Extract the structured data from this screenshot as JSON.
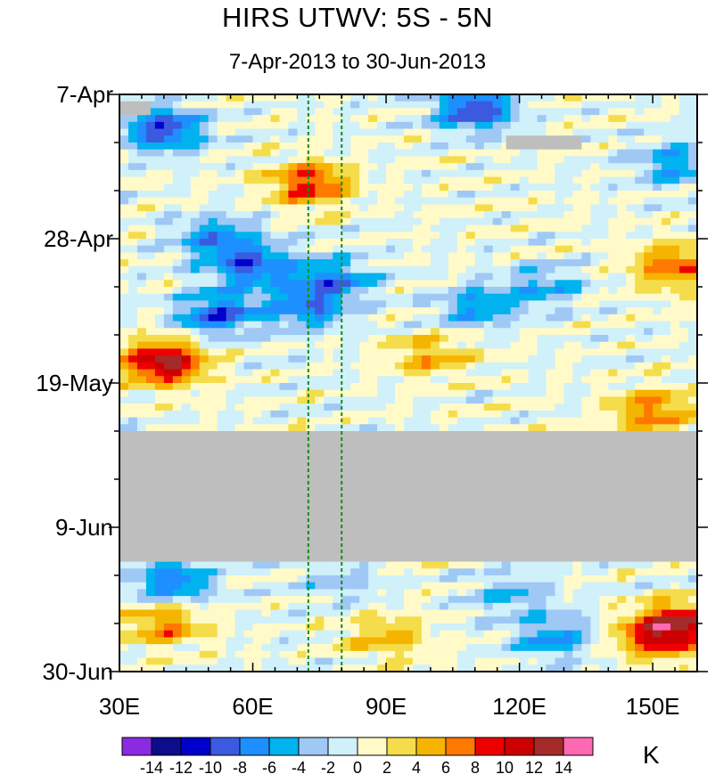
{
  "chart_data": {
    "type": "heatmap",
    "title": "HIRS UTWV: 5S - 5N",
    "subtitle": "7-Apr-2013 to 30-Jun-2013",
    "xlabel": "",
    "ylabel": "",
    "x_range": [
      30,
      160
    ],
    "y_range_days": [
      0,
      84
    ],
    "y_direction": "down",
    "x_ticks": [
      {
        "value": 30,
        "label": "30E"
      },
      {
        "value": 60,
        "label": "60E"
      },
      {
        "value": 90,
        "label": "90E"
      },
      {
        "value": 120,
        "label": "120E"
      },
      {
        "value": 150,
        "label": "150E"
      }
    ],
    "y_ticks": [
      {
        "day": 0,
        "label": "7-Apr"
      },
      {
        "day": 21,
        "label": "28-Apr"
      },
      {
        "day": 42,
        "label": "19-May"
      },
      {
        "day": 63,
        "label": "9-Jun"
      },
      {
        "day": 84,
        "label": "30-Jun"
      }
    ],
    "reference_lines_lon": [
      72.5,
      80
    ],
    "colorbar": {
      "units": "K",
      "labels": [
        "-14",
        "-12",
        "-10",
        "-8",
        "-6",
        "-4",
        "-2",
        "0",
        "2",
        "4",
        "6",
        "8",
        "10",
        "12",
        "14"
      ],
      "levels": [
        -14,
        -12,
        -10,
        -8,
        -6,
        -4,
        -2,
        0,
        2,
        4,
        6,
        8,
        10,
        12,
        14
      ],
      "colors": [
        "#8a2be2",
        "#0d0d8c",
        "#0000cc",
        "#3b5ae0",
        "#1e8fff",
        "#00b2ee",
        "#9fc8f5",
        "#d0f0fa",
        "#fffac8",
        "#f5dc4a",
        "#f5b400",
        "#ff7800",
        "#ee0000",
        "#cc0000",
        "#a52a2a",
        "#ff69b4"
      ]
    },
    "missing_data": [
      {
        "lon": [
          30,
          37
        ],
        "days": [
          1,
          3
        ]
      },
      {
        "lon": [
          117,
          134
        ],
        "days": [
          6,
          8
        ]
      },
      {
        "lon": [
          30,
          160
        ],
        "days": [
          49,
          68
        ]
      }
    ],
    "anomaly_features": [
      {
        "lon": 40,
        "day": 5,
        "value": -10
      },
      {
        "lon": 110,
        "day": 2,
        "value": -10
      },
      {
        "lon": 155,
        "day": 10,
        "value": -6
      },
      {
        "lon": 73,
        "day": 13,
        "value": 9
      },
      {
        "lon": 52,
        "day": 21,
        "value": -7
      },
      {
        "lon": 60,
        "day": 25,
        "value": -8
      },
      {
        "lon": 78,
        "day": 27,
        "value": -7
      },
      {
        "lon": 52,
        "day": 32,
        "value": -9
      },
      {
        "lon": 72,
        "day": 31,
        "value": -7
      },
      {
        "lon": 110,
        "day": 31,
        "value": -6
      },
      {
        "lon": 125,
        "day": 28,
        "value": -5
      },
      {
        "lon": 155,
        "day": 25,
        "value": 8
      },
      {
        "lon": 40,
        "day": 39,
        "value": 13
      },
      {
        "lon": 100,
        "day": 38,
        "value": 5
      },
      {
        "lon": 150,
        "day": 46,
        "value": 7
      },
      {
        "lon": 42,
        "day": 71,
        "value": -8
      },
      {
        "lon": 40,
        "day": 77,
        "value": 7
      },
      {
        "lon": 90,
        "day": 79,
        "value": 5
      },
      {
        "lon": 128,
        "day": 79,
        "value": -6
      },
      {
        "lon": 150,
        "day": 79,
        "value": 8
      },
      {
        "lon": 157,
        "day": 77,
        "value": 10
      },
      {
        "lon": 118,
        "day": 73,
        "value": -4
      },
      {
        "lon": 80,
        "day": 71,
        "value": -3
      }
    ]
  }
}
